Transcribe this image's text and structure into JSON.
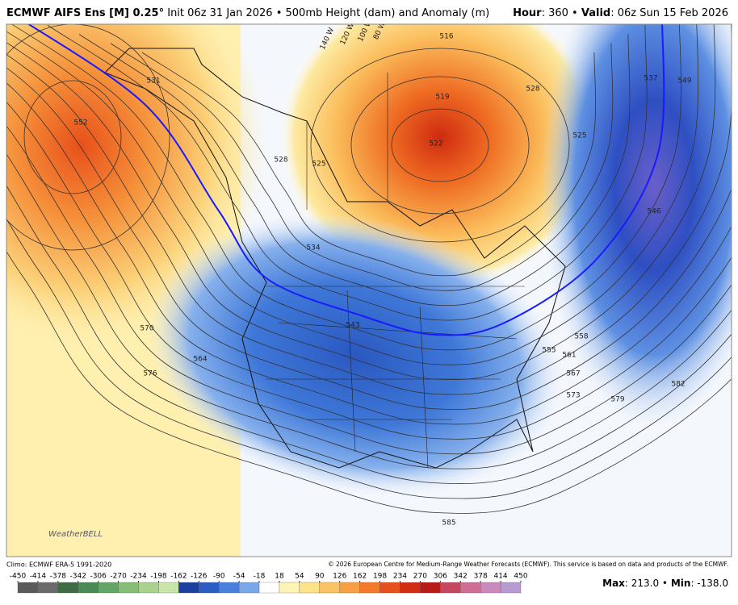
{
  "header": {
    "title": "ECMWF AIFS Ens [M] 0.25°",
    "subtitle": "Init 06z 31 Jan 2026 • 500mb Height (dam) and Anomaly (m)",
    "hour_label": "Hour",
    "hour": ": 360 •",
    "valid_label": "Valid",
    "valid": ": 06z Sun 15 Feb 2026"
  },
  "map": {
    "contour_labels": [
      "531",
      "552",
      "528",
      "525",
      "519",
      "522",
      "516",
      "528",
      "525",
      "537",
      "549",
      "546",
      "534",
      "543",
      "564",
      "570",
      "576",
      "555",
      "558",
      "561",
      "567",
      "573",
      "579",
      "582",
      "585"
    ],
    "longitude_labels": [
      "140 W",
      "120 W",
      "100 W",
      "80 W"
    ],
    "logo": "WeatherBELL"
  },
  "footer": {
    "climo": "Climo: ECMWF ERA-5 1991-2020",
    "copyright": "© 2026 European Centre for Medium-Range Weather Forecasts (ECMWF). This service is based on data and products of the ECMWF."
  },
  "colorbar": {
    "ticks": [
      -450,
      -414,
      -378,
      -342,
      -306,
      -270,
      -234,
      -198,
      -162,
      -126,
      -90,
      -54,
      -18,
      18,
      54,
      90,
      126,
      162,
      198,
      234,
      270,
      306,
      342,
      378,
      414,
      450
    ],
    "colors": [
      "#5a5a5a",
      "#6b6b6b",
      "#3f6b45",
      "#4c8a55",
      "#62a567",
      "#86bd78",
      "#a9d28f",
      "#c9e6a8",
      "#1d3f9e",
      "#2d5cc4",
      "#4a7fdc",
      "#7aa6ea",
      "#ffffff",
      "#fff4b8",
      "#fde28c",
      "#fbc366",
      "#f7a043",
      "#f27a2a",
      "#e6501c",
      "#d22c14",
      "#b81a1a",
      "#c4475f",
      "#cf6f93",
      "#c98bbd",
      "#b69ad0"
    ],
    "max_label": "Max",
    "max": ": 213.0 •",
    "min_label": "Min",
    "min": ": -138.0"
  }
}
